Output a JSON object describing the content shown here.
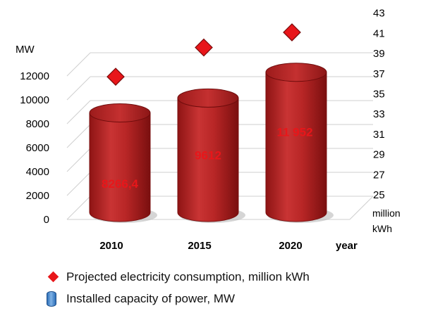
{
  "chart_data": {
    "type": "bar",
    "categories": [
      "2010",
      "2015",
      "2020"
    ],
    "x_axis_unit": "year",
    "series": [
      {
        "name": "Installed capacity of power, MW",
        "axis": "left",
        "values": [
          8266.4,
          9612,
          11952
        ],
        "data_labels": [
          "8266,4",
          "9612",
          "11 952"
        ],
        "marker": "cylinder",
        "color": "#b32424"
      },
      {
        "name": "Projected electricity consumption, million kWh",
        "axis": "right",
        "values": [
          36.7,
          39.6,
          41.1
        ],
        "marker": "diamond",
        "color": "#e8161a"
      }
    ],
    "y_left": {
      "label": "MW",
      "ticks": [
        "0",
        "2000",
        "4000",
        "6000",
        "8000",
        "10000",
        "12000"
      ],
      "ylim": [
        0,
        12000
      ]
    },
    "y_right": {
      "label_lines": [
        "million",
        "kWh"
      ],
      "ticks": [
        "25",
        "27",
        "29",
        "31",
        "33",
        "35",
        "37",
        "39",
        "41",
        "43"
      ],
      "ylim": [
        25,
        43
      ]
    },
    "grid": true,
    "legend_position": "bottom"
  }
}
